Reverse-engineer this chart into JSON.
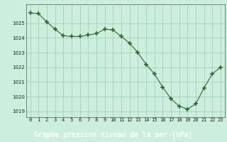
{
  "x": [
    0,
    1,
    2,
    3,
    4,
    5,
    6,
    7,
    8,
    9,
    10,
    11,
    12,
    13,
    14,
    15,
    16,
    17,
    18,
    19,
    20,
    21,
    22,
    23
  ],
  "y": [
    1025.7,
    1025.65,
    1025.1,
    1024.6,
    1024.15,
    1024.1,
    1024.1,
    1024.2,
    1024.3,
    1024.6,
    1024.55,
    1024.1,
    1023.65,
    1023.0,
    1022.2,
    1021.55,
    1020.65,
    1019.85,
    1019.35,
    1019.15,
    1019.5,
    1020.6,
    1021.55,
    1022.0
  ],
  "line_color": "#2d6a2d",
  "marker_color": "#2d6a2d",
  "bg_color": "#cceedd",
  "grid_color": "#99ccbb",
  "xlabel": "Graphe pression niveau de la mer (hPa)",
  "xlabel_color": "#003300",
  "xlabel_bg": "#44aa44",
  "tick_label_color": "#003300",
  "ylim": [
    1018.6,
    1026.3
  ],
  "yticks": [
    1019,
    1020,
    1021,
    1022,
    1023,
    1024,
    1025
  ],
  "xticks": [
    0,
    1,
    2,
    3,
    4,
    5,
    6,
    7,
    8,
    9,
    10,
    11,
    12,
    13,
    14,
    15,
    16,
    17,
    18,
    19,
    20,
    21,
    22,
    23
  ],
  "xtick_labels": [
    "0",
    "1",
    "2",
    "3",
    "4",
    "5",
    "6",
    "7",
    "8",
    "9",
    "10",
    "11",
    "12",
    "13",
    "14",
    "15",
    "16",
    "17",
    "18",
    "19",
    "20",
    "21",
    "22",
    "23"
  ]
}
